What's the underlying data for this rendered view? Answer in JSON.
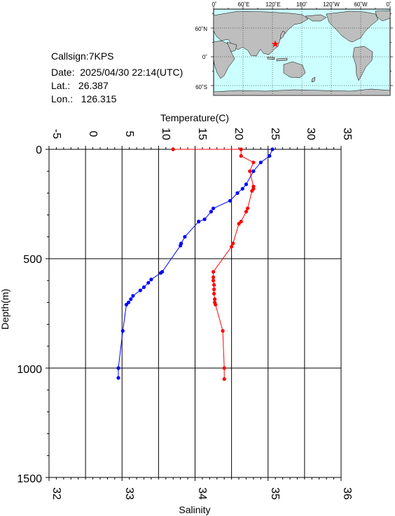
{
  "station": {
    "callsign": "Callsign:7KPS",
    "date": "Date:  2025/04/30 22:14(UTC)",
    "lat": "Lat.:   26.387",
    "lon": "Lon.:   126.315"
  },
  "map": {
    "top_ticks": [
      "0˚",
      "60˚E",
      "120˚E",
      "180˚",
      "120˚W",
      "60˚W",
      "0˚"
    ],
    "left_ticks": [
      "60˚N",
      "0˚",
      "60˚S"
    ],
    "ocean_color": "#ccffff",
    "land_color": "#bebebe",
    "marker_color": "#ff0000",
    "marker_icon": "star-icon"
  },
  "chart_data": {
    "type": "line",
    "ylabel": "Depth(m)",
    "y_ticks": [
      "0",
      "500",
      "1000",
      "1500"
    ],
    "ylim": [
      0,
      1500
    ],
    "y_inverted": true,
    "top_axis": {
      "label": "Temperature(C)",
      "ticks": [
        "-5",
        "0",
        "5",
        "10",
        "15",
        "20",
        "25",
        "30",
        "35"
      ],
      "range": [
        -5,
        35
      ]
    },
    "bottom_axis": {
      "label": "Salinity",
      "ticks": [
        "32",
        "33",
        "34",
        "35",
        "36"
      ],
      "range": [
        32,
        36
      ]
    },
    "grid": true,
    "series": [
      {
        "quantity": "temperature",
        "color": "#0000ff",
        "points": [
          [
            25.6,
            0
          ],
          [
            25.2,
            30
          ],
          [
            24.0,
            60
          ],
          [
            23.0,
            100
          ],
          [
            22.0,
            160
          ],
          [
            21.5,
            180
          ],
          [
            20.8,
            200
          ],
          [
            19.8,
            235
          ],
          [
            17.5,
            270
          ],
          [
            17.2,
            285
          ],
          [
            16.3,
            320
          ],
          [
            15.5,
            330
          ],
          [
            13.6,
            400
          ],
          [
            13.1,
            430
          ],
          [
            13.0,
            440
          ],
          [
            10.5,
            560
          ],
          [
            10.3,
            565
          ],
          [
            9.0,
            595
          ],
          [
            8.6,
            610
          ],
          [
            8.0,
            630
          ],
          [
            7.5,
            645
          ],
          [
            6.5,
            670
          ],
          [
            6.2,
            685
          ],
          [
            5.9,
            700
          ],
          [
            5.6,
            710
          ],
          [
            5.1,
            830
          ],
          [
            4.5,
            1000
          ],
          [
            4.5,
            1045
          ]
        ]
      },
      {
        "quantity": "salinity",
        "color": "#ff0000",
        "points": [
          [
            33.7,
            0
          ],
          [
            34.63,
            0
          ],
          [
            34.63,
            30
          ],
          [
            34.8,
            60
          ],
          [
            34.75,
            100
          ],
          [
            34.8,
            170
          ],
          [
            34.8,
            180
          ],
          [
            34.78,
            190
          ],
          [
            34.72,
            270
          ],
          [
            34.7,
            285
          ],
          [
            34.63,
            330
          ],
          [
            34.6,
            340
          ],
          [
            34.52,
            430
          ],
          [
            34.5,
            445
          ],
          [
            34.25,
            560
          ],
          [
            34.25,
            585
          ],
          [
            34.25,
            600
          ],
          [
            34.26,
            620
          ],
          [
            34.26,
            640
          ],
          [
            34.26,
            660
          ],
          [
            34.27,
            685
          ],
          [
            34.27,
            700
          ],
          [
            34.28,
            710
          ],
          [
            34.38,
            830
          ],
          [
            34.4,
            1000
          ],
          [
            34.4,
            1050
          ]
        ]
      }
    ]
  }
}
